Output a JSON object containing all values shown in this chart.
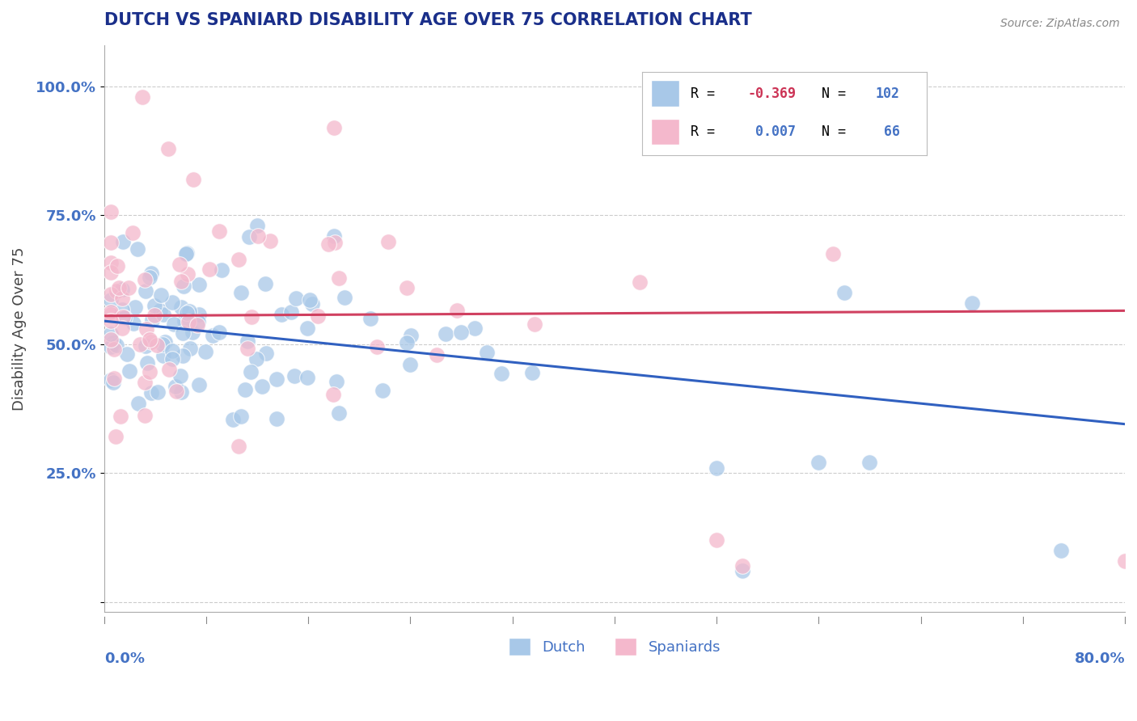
{
  "title": "DUTCH VS SPANIARD DISABILITY AGE OVER 75 CORRELATION CHART",
  "source": "Source: ZipAtlas.com",
  "ylabel": "Disability Age Over 75",
  "xlim": [
    0.0,
    0.8
  ],
  "ylim": [
    -0.02,
    1.08
  ],
  "dutch_R": -0.369,
  "dutch_N": 102,
  "spaniard_R": 0.007,
  "spaniard_N": 66,
  "dutch_color": "#a8c8e8",
  "spaniard_color": "#f4b8cc",
  "dutch_line_color": "#3060c0",
  "spaniard_line_color": "#d04060",
  "title_color": "#1a2f8a",
  "axis_label_color": "#4472c4",
  "legend_R_color": "#000000",
  "legend_val_color": "#4472c4",
  "legend_neg_color": "#cc3355",
  "background_color": "#ffffff",
  "grid_color": "#cccccc",
  "dutch_trend_x0": 0.0,
  "dutch_trend_y0": 0.545,
  "dutch_trend_x1": 0.8,
  "dutch_trend_y1": 0.345,
  "spaniard_trend_x0": 0.0,
  "spaniard_trend_y0": 0.555,
  "spaniard_trend_x1": 0.8,
  "spaniard_trend_y1": 0.565
}
